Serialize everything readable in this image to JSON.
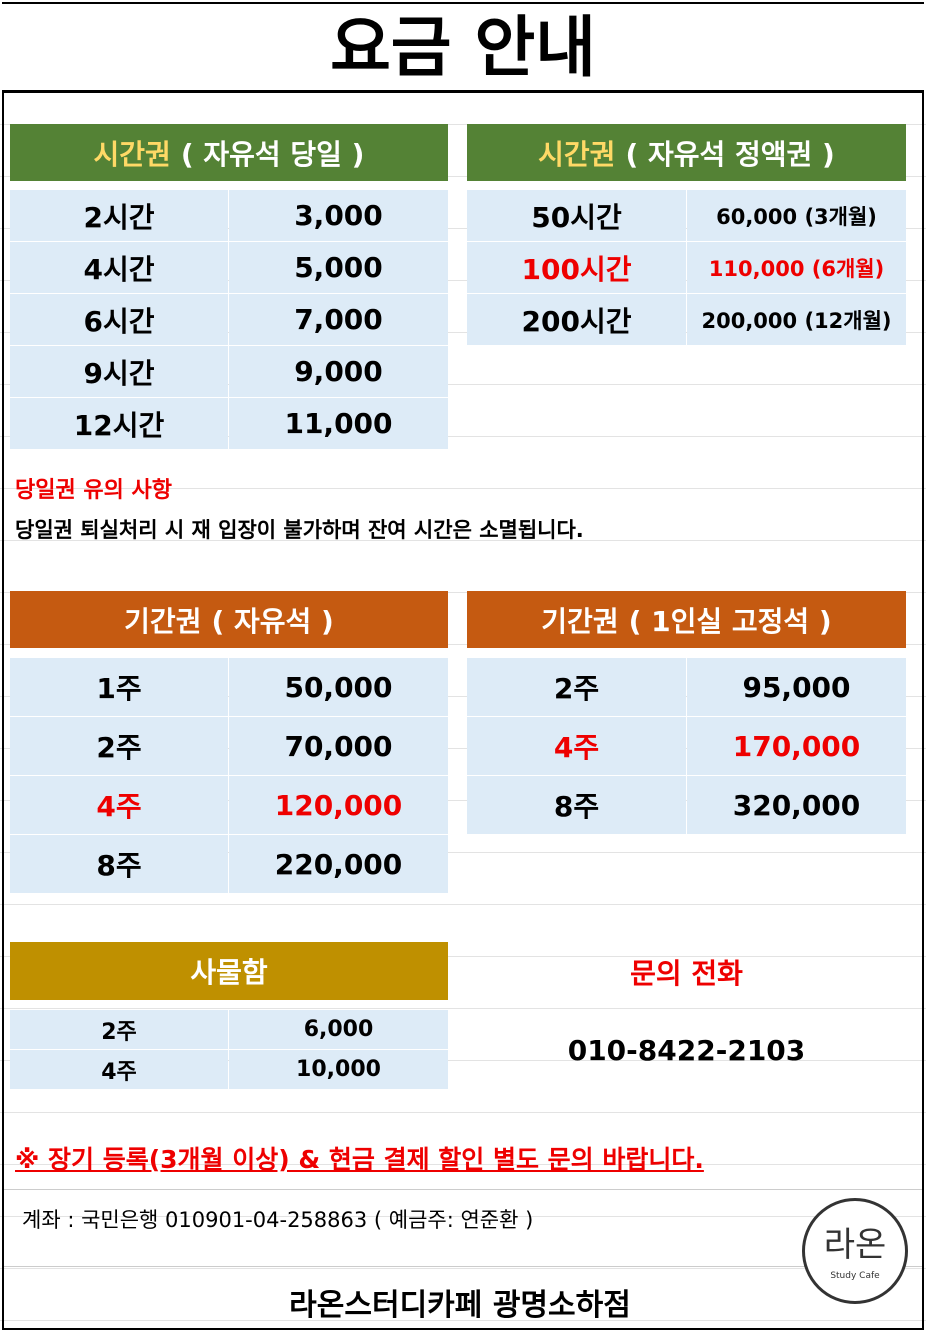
{
  "title": "요금 안내",
  "daily_pass": {
    "header": {
      "label": "시간권",
      "detail": "( 자유석 당일 )"
    },
    "rows": [
      {
        "label": "2시간",
        "price": "3,000"
      },
      {
        "label": "4시간",
        "price": "5,000"
      },
      {
        "label": "6시간",
        "price": "7,000"
      },
      {
        "label": "9시간",
        "price": "9,000"
      },
      {
        "label": "12시간",
        "price": "11,000"
      }
    ]
  },
  "time_package": {
    "header": {
      "label": "시간권",
      "detail": "( 자유석 정액권 )"
    },
    "rows": [
      {
        "label": "50시간",
        "price": "60,000 (3개월)"
      },
      {
        "label": "100시간",
        "price": "110,000 (6개월)",
        "highlight": true
      },
      {
        "label": "200시간",
        "price": "200,000 (12개월)"
      }
    ]
  },
  "daily_note": {
    "title": "당일권 유의 사항",
    "text": "당일권 퇴실처리 시 재 입장이 불가하며 잔여 시간은 소멸됩니다."
  },
  "period_free": {
    "header": {
      "label": "기간권",
      "detail": "( 자유석 )"
    },
    "rows": [
      {
        "label": "1주",
        "price": "50,000"
      },
      {
        "label": "2주",
        "price": "70,000"
      },
      {
        "label": "4주",
        "price": "120,000",
        "highlight": true
      },
      {
        "label": "8주",
        "price": "220,000"
      }
    ]
  },
  "period_fixed": {
    "header": {
      "label": "기간권",
      "detail": "( 1인실 고정석 )"
    },
    "rows": [
      {
        "label": "2주",
        "price": "95,000"
      },
      {
        "label": "4주",
        "price": "170,000",
        "highlight": true
      },
      {
        "label": "8주",
        "price": "320,000"
      }
    ]
  },
  "locker": {
    "header": {
      "label": "사물함"
    },
    "rows": [
      {
        "label": "2주",
        "price": "6,000"
      },
      {
        "label": "4주",
        "price": "10,000"
      }
    ]
  },
  "contact": {
    "title": "문의 전화",
    "phone": "010-8422-2103"
  },
  "notice": "※ 장기 등록(3개월 이상) & 현금 결제 할인 별도 문의 바랍니다.",
  "account": "계좌 : 국민은행 010901-04-258863 ( 예금주: 연준환 )",
  "logo": {
    "mark": "라온",
    "caption": "Study Cafe"
  },
  "footer": "라온스터디카페 광명소하점"
}
